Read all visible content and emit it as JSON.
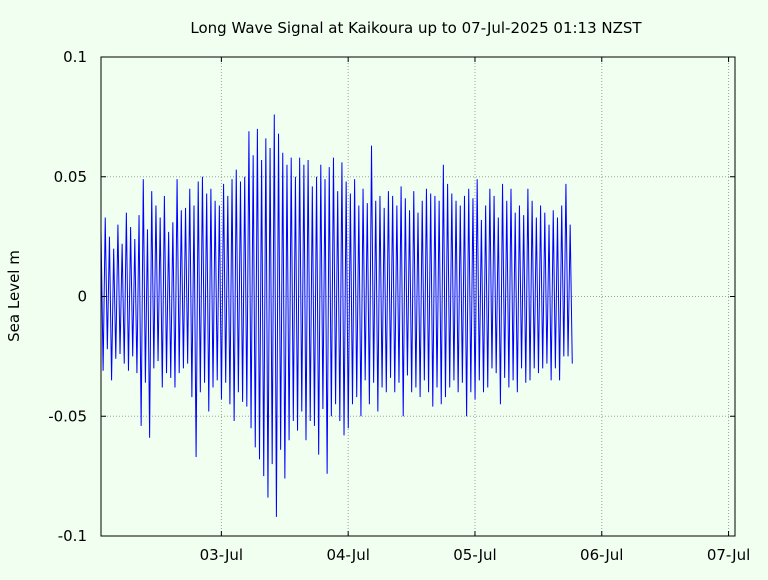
{
  "chart_data": {
    "type": "line",
    "title": "Long Wave Signal at Kaikoura up to 07-Jul-2025 01:13 NZST",
    "xlabel": "",
    "ylabel": "Sea Level m",
    "x_start": "2025-07-02T01:13:00",
    "x_end": "2025-07-07T01:13:00",
    "xlim": [
      "2025-07-02T01:13",
      "2025-07-07T01:13"
    ],
    "ylim": [
      -0.1,
      0.1
    ],
    "grid": true,
    "legend": "none",
    "colors": {
      "background": "#f0fff0",
      "series": "#0000ff",
      "grid": "#a0a0a0",
      "axes": "#000000"
    },
    "x_ticks": [
      {
        "label": "03-Jul",
        "date": "2025-07-03T00:00"
      },
      {
        "label": "04-Jul",
        "date": "2025-07-04T00:00"
      },
      {
        "label": "05-Jul",
        "date": "2025-07-05T00:00"
      },
      {
        "label": "06-Jul",
        "date": "2025-07-06T00:00"
      },
      {
        "label": "07-Jul",
        "date": "2025-07-07T00:00"
      }
    ],
    "y_ticks": [
      {
        "label": "0.1",
        "value": 0.1
      },
      {
        "label": "0.05",
        "value": 0.05
      },
      {
        "label": "0",
        "value": 0
      },
      {
        "label": "-0.05",
        "value": -0.05
      },
      {
        "label": "-0.1",
        "value": -0.1
      }
    ],
    "series": [
      {
        "x_step_minutes": 24,
        "values": [
          0.028,
          -0.031,
          0.033,
          -0.022,
          0.025,
          -0.035,
          0.02,
          -0.026,
          0.03,
          -0.024,
          0.022,
          -0.028,
          0.035,
          -0.031,
          0.029,
          -0.025,
          0.024,
          -0.032,
          0.034,
          -0.054,
          0.049,
          -0.036,
          0.028,
          -0.059,
          0.044,
          -0.03,
          0.038,
          -0.027,
          0.033,
          -0.038,
          0.042,
          -0.032,
          0.027,
          -0.034,
          0.031,
          -0.038,
          0.049,
          -0.032,
          0.036,
          -0.03,
          0.037,
          -0.028,
          0.045,
          -0.042,
          0.038,
          -0.067,
          0.048,
          -0.04,
          0.05,
          -0.036,
          0.043,
          -0.048,
          0.045,
          -0.038,
          0.04,
          -0.035,
          0.038,
          -0.043,
          0.047,
          -0.036,
          0.042,
          -0.045,
          0.049,
          -0.052,
          0.053,
          -0.04,
          0.048,
          -0.044,
          0.05,
          -0.046,
          0.069,
          -0.055,
          0.059,
          -0.063,
          0.07,
          -0.068,
          0.057,
          -0.075,
          0.066,
          -0.084,
          0.062,
          -0.07,
          0.076,
          -0.092,
          0.068,
          -0.064,
          0.06,
          -0.076,
          0.055,
          -0.06,
          0.058,
          -0.052,
          0.05,
          -0.056,
          0.058,
          -0.048,
          0.055,
          -0.06,
          0.057,
          -0.052,
          0.046,
          -0.054,
          0.05,
          -0.066,
          0.055,
          -0.047,
          0.049,
          -0.074,
          0.054,
          -0.05,
          0.058,
          -0.045,
          0.044,
          -0.052,
          0.056,
          -0.058,
          0.048,
          -0.055,
          0.043,
          -0.045,
          0.049,
          -0.042,
          0.038,
          -0.05,
          0.045,
          -0.035,
          0.039,
          -0.045,
          0.063,
          -0.036,
          0.04,
          -0.048,
          0.042,
          -0.038,
          0.037,
          -0.04,
          0.044,
          -0.034,
          0.042,
          -0.04,
          0.038,
          -0.036,
          0.046,
          -0.05,
          0.041,
          -0.033,
          0.036,
          -0.04,
          0.044,
          -0.038,
          0.035,
          -0.042,
          0.04,
          -0.035,
          0.045,
          -0.04,
          0.043,
          -0.046,
          0.042,
          -0.038,
          0.04,
          -0.045,
          0.055,
          -0.042,
          0.047,
          -0.038,
          0.043,
          -0.035,
          0.04,
          -0.04,
          0.038,
          -0.036,
          0.042,
          -0.05,
          0.045,
          -0.04,
          0.041,
          -0.043,
          0.049,
          -0.035,
          0.032,
          -0.04,
          0.038,
          -0.038,
          0.045,
          -0.03,
          0.042,
          -0.032,
          0.033,
          -0.045,
          0.047,
          -0.034,
          0.04,
          -0.038,
          0.045,
          -0.035,
          0.035,
          -0.04,
          0.038,
          -0.03,
          0.034,
          -0.036,
          0.045,
          -0.035,
          0.04,
          -0.03,
          0.033,
          -0.032,
          0.038,
          -0.03,
          0.035,
          -0.028,
          0.03,
          -0.035,
          0.036,
          -0.03,
          0.033,
          -0.035,
          0.038,
          -0.025,
          0.047,
          -0.025,
          0.03,
          -0.028
        ]
      }
    ]
  }
}
